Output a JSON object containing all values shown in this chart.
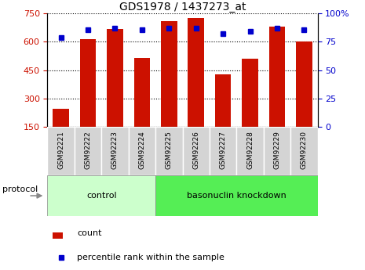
{
  "title": "GDS1978 / 1437273_at",
  "samples": [
    "GSM92221",
    "GSM92222",
    "GSM92223",
    "GSM92224",
    "GSM92225",
    "GSM92226",
    "GSM92227",
    "GSM92228",
    "GSM92229",
    "GSM92230"
  ],
  "counts": [
    245,
    615,
    670,
    515,
    710,
    725,
    430,
    510,
    680,
    600
  ],
  "percentile_ranks": [
    79,
    86,
    87,
    86,
    87,
    87,
    82,
    84,
    87,
    86
  ],
  "groups": [
    {
      "label": "control",
      "start": 0,
      "end": 3,
      "color": "#ccffcc"
    },
    {
      "label": "basonuclin knockdown",
      "start": 4,
      "end": 9,
      "color": "#55ee55"
    }
  ],
  "ylim_left": [
    150,
    750
  ],
  "ylim_right": [
    0,
    100
  ],
  "yticks_left": [
    150,
    300,
    450,
    600,
    750
  ],
  "yticks_right": [
    0,
    25,
    50,
    75,
    100
  ],
  "bar_color": "#cc1100",
  "dot_color": "#0000cc",
  "bg_color": "#ffffff",
  "label_count": "count",
  "label_pct": "percentile rank within the sample",
  "protocol_label": "protocol",
  "tick_label_color_left": "#cc1100",
  "tick_label_color_right": "#0000cc"
}
